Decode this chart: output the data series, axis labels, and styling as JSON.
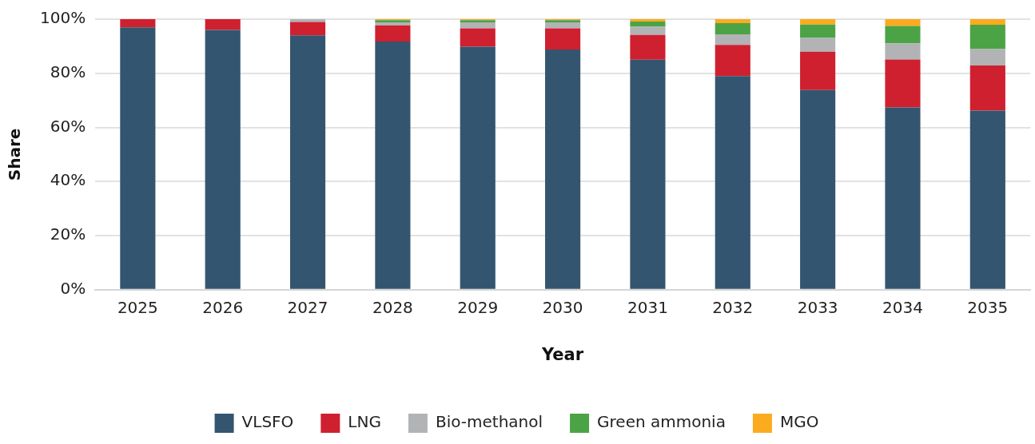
{
  "chart_data": {
    "type": "bar",
    "stacked": true,
    "xlabel": "Year",
    "ylabel": "Share",
    "categories": [
      "2025",
      "2026",
      "2027",
      "2028",
      "2029",
      "2030",
      "2031",
      "2032",
      "2033",
      "2034",
      "2035"
    ],
    "series": [
      {
        "name": "VLSFO",
        "color": "#34556f",
        "values": [
          97,
          96,
          94,
          91.7,
          89.8,
          88.8,
          85,
          79,
          73.8,
          67.4,
          66.2
        ]
      },
      {
        "name": "LNG",
        "color": "#cf202f",
        "values": [
          3,
          4,
          5,
          6,
          6.8,
          7.8,
          9.2,
          11.5,
          14.2,
          17.7,
          16.7
        ]
      },
      {
        "name": "Bio-methanol",
        "color": "#b1b3b5",
        "values": [
          0,
          0,
          1,
          1.1,
          2.2,
          2.2,
          3,
          3.9,
          5.1,
          6,
          6
        ]
      },
      {
        "name": "Green ammonia",
        "color": "#4ca346",
        "values": [
          0,
          0,
          0,
          0.8,
          0.8,
          0.8,
          1.9,
          4.1,
          4.9,
          6.4,
          9
        ]
      },
      {
        "name": "MGO",
        "color": "#fbab1e",
        "values": [
          0,
          0,
          0,
          0.4,
          0.4,
          0.4,
          0.9,
          1.5,
          2,
          2.5,
          2.1
        ]
      }
    ],
    "ylim": [
      0,
      100
    ],
    "yticks": [
      {
        "value": 0,
        "label": "0%"
      },
      {
        "value": 20,
        "label": "20%"
      },
      {
        "value": 40,
        "label": "40%"
      },
      {
        "value": 60,
        "label": "60%"
      },
      {
        "value": 80,
        "label": "80%"
      },
      {
        "value": 100,
        "label": "100%"
      }
    ],
    "grid": "y",
    "legend": "bottom"
  }
}
